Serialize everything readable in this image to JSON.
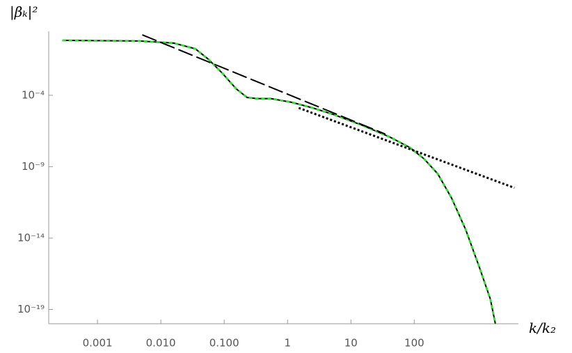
{
  "chart_data": {
    "type": "line",
    "x_label": "k/k₂",
    "y_label": "|βₖ|²",
    "xscale": "log",
    "yscale": "log",
    "xlim": [
      0.00017,
      4400
    ],
    "ylim": [
      1e-20,
      3
    ],
    "xticks": [
      0.001,
      {
        "value": 0.01,
        "label": "0.010"
      },
      {
        "value": 0.1,
        "label": "0.100"
      },
      1,
      10,
      100
    ],
    "yticks": [
      {
        "value": 0.0001,
        "label": "10⁻⁴"
      },
      {
        "value": 1e-09,
        "label": "10⁻⁹"
      },
      {
        "value": 1e-14,
        "label": "10⁻¹⁴"
      },
      {
        "value": 1e-19,
        "label": "10⁻¹⁹"
      }
    ],
    "axis_color": "#999999",
    "series": [
      {
        "color": "#000000",
        "overlay_color": "#33dd33",
        "dash": "solid",
        "x": [
          0.00028,
          0.0046,
          0.016,
          0.035,
          0.056,
          0.093,
          0.155,
          0.23,
          0.33,
          0.55,
          1.17,
          2.5,
          5.4,
          15,
          41,
          85,
          141,
          234,
          389,
          646,
          1072,
          1585,
          1905
        ],
        "values": [
          0.7,
          0.63,
          0.45,
          0.18,
          0.034,
          0.0036,
          0.00028,
          7e-05,
          5.8e-05,
          5.8e-05,
          3.2e-05,
          1.3e-05,
          4.4e-06,
          8e-07,
          1.2e-07,
          2.2e-08,
          3.7e-09,
          3.2e-10,
          6.2e-12,
          4e-14,
          8.3e-17,
          5.4e-19,
          1e-20
        ]
      },
      {
        "color": "#000000",
        "dash": "dashed",
        "x": [
          0.0051,
          35
        ],
        "values": [
          1.7,
          1.9e-07
        ]
      },
      {
        "color": "#000000",
        "dash": "dotted",
        "x": [
          1.5,
          3800
        ],
        "values": [
          1.3e-05,
          3.3e-11
        ]
      }
    ]
  }
}
